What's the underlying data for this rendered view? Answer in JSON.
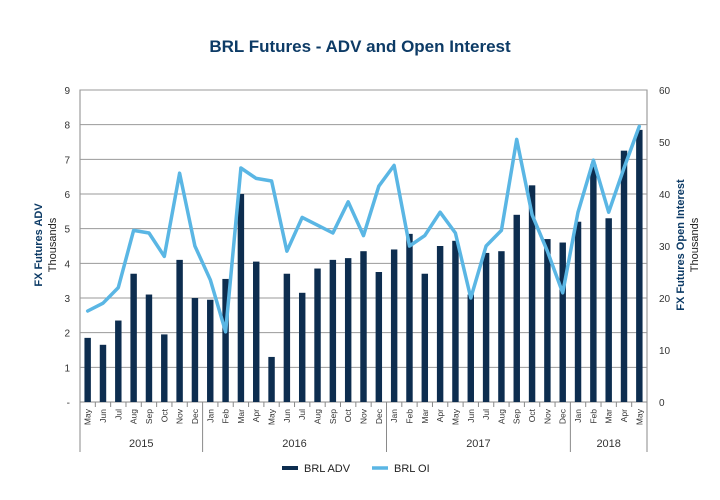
{
  "chart_data": {
    "type": "bar",
    "title": "BRL Futures  - ADV and Open Interest",
    "ylabel_left": "FX Futures ADV",
    "ylabel_left_unit": "Thousands",
    "ylabel_right": "FX Futures Open Interest",
    "ylabel_right_unit": "Thousands",
    "ylim_left": [
      0,
      9
    ],
    "ylim_right": [
      0,
      60
    ],
    "yticks_left": [
      "-",
      "1",
      "2",
      "3",
      "4",
      "5",
      "6",
      "7",
      "8",
      "9"
    ],
    "yticks_right": [
      "0",
      "10",
      "20",
      "30",
      "40",
      "50",
      "60"
    ],
    "grid": true,
    "legend_position": "bottom",
    "categories": [
      "May",
      "Jun",
      "Jul",
      "Aug",
      "Sep",
      "Oct",
      "Nov",
      "Dec",
      "Jan",
      "Feb",
      "Mar",
      "Apr",
      "May",
      "Jun",
      "Jul",
      "Aug",
      "Sep",
      "Oct",
      "Nov",
      "Dec",
      "Jan",
      "Feb",
      "Mar",
      "Apr",
      "May",
      "Jun",
      "Jul",
      "Aug",
      "Sep",
      "Oct",
      "Nov",
      "Dec",
      "Jan",
      "Feb",
      "Mar",
      "Apr",
      "May"
    ],
    "years": [
      {
        "label": "2015",
        "start": 0,
        "end": 7
      },
      {
        "label": "2016",
        "start": 8,
        "end": 19
      },
      {
        "label": "2017",
        "start": 20,
        "end": 31
      },
      {
        "label": "2018",
        "start": 32,
        "end": 36
      }
    ],
    "series": [
      {
        "name": "BRL ADV",
        "type": "bar",
        "axis": "left",
        "color": "#0d2d4f",
        "values": [
          1.85,
          1.65,
          2.35,
          3.7,
          3.1,
          1.95,
          4.1,
          3.0,
          2.95,
          3.55,
          6.0,
          4.05,
          1.3,
          3.7,
          3.15,
          3.85,
          4.1,
          4.15,
          4.35,
          3.75,
          4.4,
          4.85,
          3.7,
          4.5,
          4.65,
          3.1,
          4.3,
          4.35,
          5.4,
          6.25,
          4.7,
          4.6,
          5.2,
          6.85,
          5.3,
          7.25,
          7.85
        ]
      },
      {
        "name": "BRL OI",
        "type": "line",
        "axis": "right",
        "color": "#5ab6e4",
        "values": [
          17.5,
          19,
          22,
          33,
          32.5,
          28,
          44,
          30,
          23.5,
          13.5,
          45,
          43,
          42.5,
          29,
          35.5,
          34,
          32.5,
          38.5,
          32,
          41.5,
          45.5,
          30,
          32,
          36.5,
          32.5,
          20,
          30,
          33,
          50.5,
          36,
          29,
          21,
          36.5,
          46.5,
          36.5,
          45,
          53
        ]
      }
    ]
  }
}
